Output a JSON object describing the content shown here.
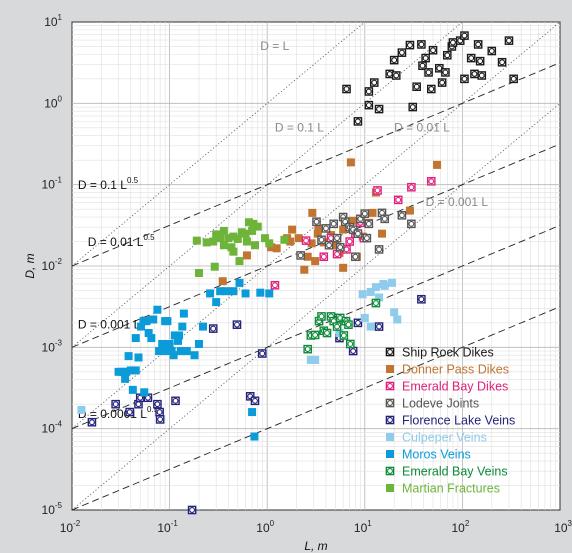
{
  "chart_data": {
    "type": "scatter",
    "xscale": "log",
    "yscale": "log",
    "xlim": [
      0.01,
      1000
    ],
    "ylim": [
      1e-05,
      10
    ],
    "xlabel": "L, m",
    "ylabel": "D, m",
    "x_ticks": [
      {
        "value": 0.01,
        "base": "10",
        "exp": "-2"
      },
      {
        "value": 0.1,
        "base": "10",
        "exp": "-1"
      },
      {
        "value": 1,
        "base": "10",
        "exp": "0"
      },
      {
        "value": 10,
        "base": "10",
        "exp": "1"
      },
      {
        "value": 100,
        "base": "10",
        "exp": "2"
      },
      {
        "value": 1000,
        "base": "10",
        "exp": "3"
      }
    ],
    "y_ticks": [
      {
        "value": 1e-05,
        "base": "10",
        "exp": "-5"
      },
      {
        "value": 0.0001,
        "base": "10",
        "exp": "-4"
      },
      {
        "value": 0.001,
        "base": "10",
        "exp": "-3"
      },
      {
        "value": 0.01,
        "base": "10",
        "exp": "-2"
      },
      {
        "value": 0.1,
        "base": "10",
        "exp": "-1"
      },
      {
        "value": 1,
        "base": "10",
        "exp": "0"
      },
      {
        "value": 10,
        "base": "10",
        "exp": "1"
      }
    ],
    "grid": true,
    "reference_lines": [
      {
        "label": "D = L",
        "coef": 1,
        "power": 1,
        "style": "dotted",
        "label_x": 0.85,
        "label_y": 4.5,
        "label_color": "#8a8a8a"
      },
      {
        "label": "D = 0.1 L",
        "coef": 0.1,
        "power": 1,
        "style": "dotted",
        "label_x": 1.2,
        "label_y": 0.45,
        "label_color": "#8a8a8a"
      },
      {
        "label": "D = 0.01 L",
        "coef": 0.01,
        "power": 1,
        "style": "dotted",
        "label_x": 20,
        "label_y": 0.45,
        "label_color": "#8a8a8a"
      },
      {
        "label": "D = 0.001 L",
        "coef": 0.001,
        "power": 1,
        "style": "dotted",
        "label_x": 42,
        "label_y": 0.055,
        "label_color": "#8a8a8a"
      },
      {
        "label": "D = 0.1 L",
        "sup": "0.5",
        "coef": 0.1,
        "power": 0.5,
        "style": "dashed",
        "label_x": 0.0115,
        "label_y": 0.088,
        "label_color": "#111"
      },
      {
        "label": "D = 0.01 L",
        "sup": "0.5",
        "coef": 0.01,
        "power": 0.5,
        "style": "dashed",
        "label_x": 0.0145,
        "label_y": 0.0175,
        "label_color": "#111"
      },
      {
        "label": "D = 0.001 L",
        "sup": "0.5",
        "coef": 0.001,
        "power": 0.5,
        "style": "dashed",
        "label_x": 0.0115,
        "label_y": 0.0017,
        "label_color": "#111"
      },
      {
        "label": "D = 0.0001 L",
        "sup": "0.5",
        "coef": 0.0001,
        "power": 0.5,
        "style": "dashed",
        "label_x": 0.0115,
        "label_y": 0.000135,
        "label_color": "#111"
      }
    ],
    "legend_position": "bottom-right",
    "series": [
      {
        "name": "Ship Rock Dikes",
        "marker": "open",
        "color": "#1a1a1a",
        "points": [
          [
            6.5,
            1.5
          ],
          [
            8.5,
            0.6
          ],
          [
            11,
            0.95
          ],
          [
            11,
            1.4
          ],
          [
            12.5,
            1.8
          ],
          [
            14,
            0.85
          ],
          [
            18,
            2.3
          ],
          [
            21,
            2.2
          ],
          [
            20,
            3.4
          ],
          [
            24,
            4.2
          ],
          [
            29,
            5.2
          ],
          [
            31,
            0.9
          ],
          [
            34,
            1.6
          ],
          [
            38,
            5.3
          ],
          [
            39,
            2.9
          ],
          [
            42,
            3.6
          ],
          [
            45,
            2.4
          ],
          [
            48,
            1.5
          ],
          [
            50,
            4.5
          ],
          [
            58,
            2.7
          ],
          [
            62,
            1.8
          ],
          [
            67,
            2.4
          ],
          [
            70,
            3.9
          ],
          [
            78,
            5.0
          ],
          [
            80,
            5.6
          ],
          [
            95,
            5.9
          ],
          [
            105,
            6.8
          ],
          [
            105,
            2.0
          ],
          [
            123,
            3.6
          ],
          [
            133,
            2.3
          ],
          [
            145,
            5.3
          ],
          [
            152,
            3.3
          ],
          [
            158,
            2.2
          ],
          [
            200,
            4.4
          ],
          [
            255,
            3.2
          ],
          [
            300,
            5.9
          ],
          [
            335,
            2.0
          ]
        ]
      },
      {
        "name": "Donner Pass Dikes",
        "marker": "filled",
        "color": "#c27530",
        "points": [
          [
            0.35,
            0.0065
          ],
          [
            0.62,
            0.0135
          ],
          [
            1.1,
            0.017
          ],
          [
            1.25,
            0.0165
          ],
          [
            1.6,
            0.022
          ],
          [
            1.72,
            0.02
          ],
          [
            1.8,
            0.028
          ],
          [
            2.1,
            0.022
          ],
          [
            2.4,
            0.009
          ],
          [
            2.6,
            0.013
          ],
          [
            2.85,
            0.019
          ],
          [
            2.9,
            0.045
          ],
          [
            3.1,
            0.0115
          ],
          [
            3.3,
            0.025
          ],
          [
            3.35,
            0.029
          ],
          [
            3.8,
            0.0195
          ],
          [
            4.5,
            0.024
          ],
          [
            5,
            0.018
          ],
          [
            5.5,
            0.0145
          ],
          [
            6,
            0.028
          ],
          [
            6,
            0.0095
          ],
          [
            7.2,
            0.188
          ],
          [
            7.5,
            0.036
          ],
          [
            8.3,
            0.013
          ],
          [
            9.5,
            0.023
          ],
          [
            11,
            0.034
          ],
          [
            12,
            0.045
          ],
          [
            13,
            0.08
          ],
          [
            15,
            0.025
          ],
          [
            55,
            0.175
          ],
          [
            29,
            0.048
          ]
        ]
      },
      {
        "name": "Emerald Bay Dikes",
        "marker": "open",
        "color": "#e0207a",
        "points": [
          [
            1.2,
            0.0058
          ],
          [
            2.5,
            0.0205
          ],
          [
            3.8,
            0.013
          ],
          [
            4.5,
            0.022
          ],
          [
            5.2,
            0.014
          ],
          [
            6.5,
            0.016
          ],
          [
            7,
            0.02
          ],
          [
            8,
            0.025
          ],
          [
            9,
            0.034
          ],
          [
            9.8,
            0.022
          ],
          [
            13.5,
            0.085
          ],
          [
            22,
            0.065
          ],
          [
            30,
            0.093
          ],
          [
            48,
            0.11
          ]
        ]
      },
      {
        "name": "Lodeve Joints",
        "marker": "open",
        "color": "#555",
        "points": [
          [
            2.2,
            0.0135
          ],
          [
            3.2,
            0.035
          ],
          [
            3.6,
            0.021
          ],
          [
            4,
            0.029
          ],
          [
            4.3,
            0.018
          ],
          [
            4.8,
            0.033
          ],
          [
            5.2,
            0.022
          ],
          [
            5.6,
            0.017
          ],
          [
            6,
            0.04
          ],
          [
            6.3,
            0.035
          ],
          [
            7,
            0.03
          ],
          [
            7.6,
            0.028
          ],
          [
            8,
            0.013
          ],
          [
            8.5,
            0.025
          ],
          [
            9,
            0.038
          ],
          [
            10,
            0.044
          ],
          [
            10.5,
            0.022
          ],
          [
            11,
            0.033
          ],
          [
            14,
            0.016
          ],
          [
            15,
            0.045
          ],
          [
            16,
            0.038
          ],
          [
            24,
            0.042
          ],
          [
            30,
            0.033
          ]
        ]
      },
      {
        "name": "Florence Lake Veins",
        "marker": "open",
        "color": "#23237a",
        "points": [
          [
            0.016,
            0.00012
          ],
          [
            0.028,
            0.0002
          ],
          [
            0.039,
            0.00016
          ],
          [
            0.048,
            0.0002
          ],
          [
            0.05,
            0.00024
          ],
          [
            0.06,
            0.00024
          ],
          [
            0.075,
            0.0002
          ],
          [
            0.079,
            0.00016
          ],
          [
            0.08,
            0.00013
          ],
          [
            0.115,
            0.00022
          ],
          [
            0.17,
            1e-05
          ],
          [
            0.28,
            0.0017
          ],
          [
            0.49,
            0.0019
          ],
          [
            0.67,
            0.00025
          ],
          [
            0.75,
            0.00022
          ],
          [
            0.89,
            0.00084
          ],
          [
            4.8,
            0.0023
          ],
          [
            5.5,
            0.0013
          ],
          [
            7.6,
            0.0009
          ],
          [
            8.5,
            0.002
          ],
          [
            14,
            0.0018
          ],
          [
            38,
            0.0039
          ]
        ]
      },
      {
        "name": "Culpeper Veins",
        "marker": "filled",
        "color": "#8fcbea",
        "points": [
          [
            0.0125,
            0.00017
          ],
          [
            2.8,
            0.0007
          ],
          [
            3.1,
            0.0007
          ],
          [
            5.5,
            0.0015
          ],
          [
            9.5,
            0.0045
          ],
          [
            10,
            0.0023
          ],
          [
            11.5,
            0.0048
          ],
          [
            13,
            0.0055
          ],
          [
            14,
            0.0041
          ],
          [
            15.5,
            0.006
          ],
          [
            16,
            0.0057
          ],
          [
            19,
            0.0062
          ],
          [
            20,
            0.0027
          ],
          [
            21.5,
            0.0022
          ],
          [
            6.5,
            0.0021
          ],
          [
            11.5,
            0.0018
          ]
        ]
      },
      {
        "name": "Moros Veins",
        "marker": "filled",
        "color": "#0b9bd9",
        "points": [
          [
            0.03,
            0.0005
          ],
          [
            0.033,
            0.0005
          ],
          [
            0.036,
            0.0005
          ],
          [
            0.038,
            0.00078
          ],
          [
            0.04,
            0.00052
          ],
          [
            0.045,
            0.00052
          ],
          [
            0.048,
            0.00075
          ],
          [
            0.045,
            0.0013
          ],
          [
            0.051,
            0.0018
          ],
          [
            0.054,
            0.0021
          ],
          [
            0.058,
            0.0021
          ],
          [
            0.061,
            0.0015
          ],
          [
            0.065,
            0.0013
          ],
          [
            0.068,
            0.0022
          ],
          [
            0.075,
            0.0029
          ],
          [
            0.078,
            0.0009
          ],
          [
            0.084,
            0.0011
          ],
          [
            0.088,
            0.0009
          ],
          [
            0.09,
            0.0021
          ],
          [
            0.095,
            0.0021
          ],
          [
            0.1,
            0.0011
          ],
          [
            0.105,
            0.0009
          ],
          [
            0.11,
            0.0008
          ],
          [
            0.113,
            0.0014
          ],
          [
            0.122,
            0.0012
          ],
          [
            0.13,
            0.0009
          ],
          [
            0.135,
            0.0018
          ],
          [
            0.125,
            0.0014
          ],
          [
            0.14,
            0.0026
          ],
          [
            0.15,
            0.0009
          ],
          [
            0.18,
            0.0008
          ],
          [
            0.2,
            0.0011
          ],
          [
            0.22,
            0.0018
          ],
          [
            0.26,
            0.0046
          ],
          [
            0.3,
            0.0036
          ],
          [
            0.33,
            0.0049
          ],
          [
            0.38,
            0.0049
          ],
          [
            0.45,
            0.0049
          ],
          [
            0.52,
            0.0062
          ],
          [
            0.6,
            0.0046
          ],
          [
            0.7,
            0.00016
          ],
          [
            0.74,
            8e-05
          ],
          [
            0.85,
            0.0047
          ],
          [
            1.05,
            0.0046
          ],
          [
            0.055,
            0.00028
          ],
          [
            0.042,
            0.0003
          ],
          [
            0.035,
            0.00041
          ]
        ]
      },
      {
        "name": "Emerald Bay Veins",
        "marker": "open",
        "color": "#0e8a3a",
        "points": [
          [
            2.6,
            0.00095
          ],
          [
            2.8,
            0.0014
          ],
          [
            3.1,
            0.00142
          ],
          [
            3.4,
            0.0021
          ],
          [
            3.6,
            0.0024
          ],
          [
            3.8,
            0.0016
          ],
          [
            4.1,
            0.0015
          ],
          [
            4.5,
            0.0024
          ],
          [
            4.8,
            0.0021
          ],
          [
            5.2,
            0.0018
          ],
          [
            5.6,
            0.0023
          ],
          [
            6.1,
            0.0014
          ],
          [
            6.4,
            0.0021
          ],
          [
            6.8,
            0.0019
          ],
          [
            7.1,
            0.0011
          ],
          [
            13,
            0.0035
          ]
        ]
      },
      {
        "name": "Martian Fractures",
        "marker": "filled",
        "color": "#6fb43a",
        "points": [
          [
            0.19,
            0.0205
          ],
          [
            0.24,
            0.0195
          ],
          [
            0.28,
            0.02
          ],
          [
            0.3,
            0.0245
          ],
          [
            0.33,
            0.022
          ],
          [
            0.36,
            0.018
          ],
          [
            0.4,
            0.022
          ],
          [
            0.43,
            0.017
          ],
          [
            0.45,
            0.023
          ],
          [
            0.5,
            0.0215
          ],
          [
            0.52,
            0.0115
          ],
          [
            0.55,
            0.026
          ],
          [
            0.6,
            0.025
          ],
          [
            0.62,
            0.02
          ],
          [
            0.65,
            0.0345
          ],
          [
            0.7,
            0.027
          ],
          [
            0.75,
            0.018
          ],
          [
            0.8,
            0.0305
          ],
          [
            0.95,
            0.022
          ],
          [
            1.05,
            0.019
          ],
          [
            1.5,
            0.021
          ],
          [
            0.29,
            0.0098
          ],
          [
            0.2,
            0.0082
          ],
          [
            0.45,
            0.015
          ],
          [
            0.36,
            0.027
          ],
          [
            0.72,
            0.033
          ]
        ]
      }
    ]
  }
}
